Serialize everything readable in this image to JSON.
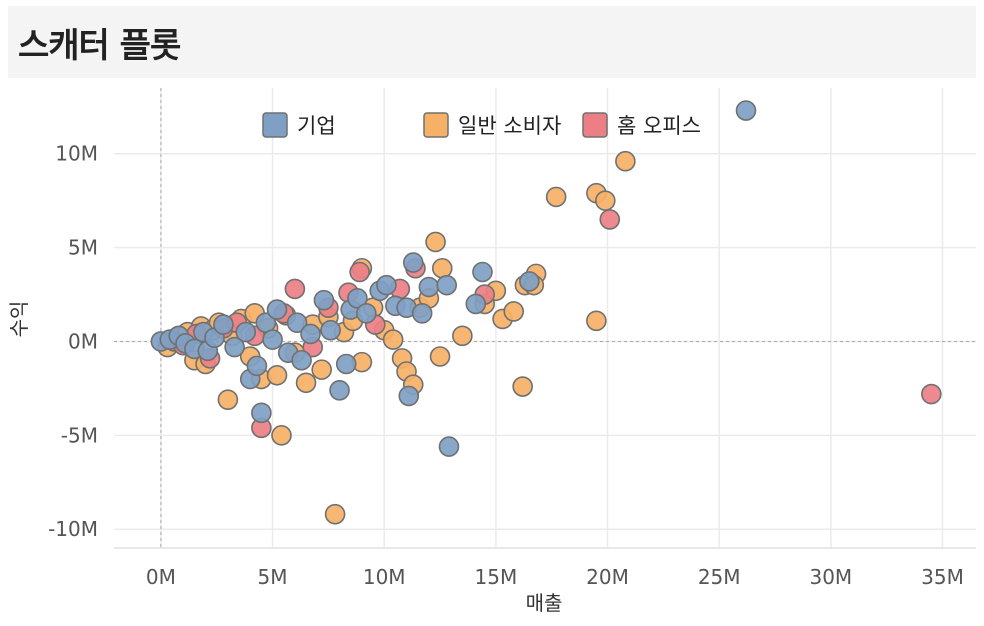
{
  "title": "스캐터 플롯",
  "colors": {
    "기업": "#7f9fc4",
    "일반 소비자": "#f6b167",
    "홈 오피스": "#ec7f86",
    "stroke": "#707070",
    "grid": "#ebebeb"
  },
  "chart_data": {
    "type": "scatter",
    "xlabel": "매출",
    "ylabel": "수익",
    "xlim": [
      -2100000,
      36500000
    ],
    "ylim": [
      -11000000,
      13500000
    ],
    "xticks": [
      0,
      5000000,
      10000000,
      15000000,
      20000000,
      25000000,
      30000000,
      35000000
    ],
    "xtick_labels": [
      "0M",
      "5M",
      "10M",
      "15M",
      "20M",
      "25M",
      "30M",
      "35M"
    ],
    "yticks": [
      -10000000,
      -5000000,
      0,
      5000000,
      10000000
    ],
    "ytick_labels": [
      "-10M",
      "-5M",
      "0M",
      "5M",
      "10M"
    ],
    "legend_position": "top",
    "series": [
      {
        "name": "일반 소비자",
        "points": [
          [
            300000,
            -300000
          ],
          [
            700000,
            200000
          ],
          [
            1200000,
            500000
          ],
          [
            1500000,
            -1000000
          ],
          [
            1800000,
            800000
          ],
          [
            2000000,
            -1200000
          ],
          [
            2300000,
            600000
          ],
          [
            2600000,
            1000000
          ],
          [
            3000000,
            -3100000
          ],
          [
            3200000,
            300000
          ],
          [
            3600000,
            1200000
          ],
          [
            4000000,
            -800000
          ],
          [
            4200000,
            1500000
          ],
          [
            4500000,
            -2000000
          ],
          [
            4800000,
            700000
          ],
          [
            5200000,
            -1800000
          ],
          [
            5400000,
            -5000000
          ],
          [
            5600000,
            1400000
          ],
          [
            6000000,
            -600000
          ],
          [
            6500000,
            -2200000
          ],
          [
            6800000,
            900000
          ],
          [
            7200000,
            -1500000
          ],
          [
            7500000,
            1300000
          ],
          [
            7800000,
            -9200000
          ],
          [
            8200000,
            500000
          ],
          [
            8600000,
            1100000
          ],
          [
            9000000,
            3900000
          ],
          [
            9000000,
            -1100000
          ],
          [
            9500000,
            1800000
          ],
          [
            10000000,
            600000
          ],
          [
            10400000,
            100000
          ],
          [
            10800000,
            -900000
          ],
          [
            11000000,
            -1600000
          ],
          [
            11300000,
            -2300000
          ],
          [
            11600000,
            1800000
          ],
          [
            12000000,
            2300000
          ],
          [
            12300000,
            5300000
          ],
          [
            12600000,
            3900000
          ],
          [
            12500000,
            -800000
          ],
          [
            13500000,
            300000
          ],
          [
            14500000,
            2000000
          ],
          [
            15000000,
            2700000
          ],
          [
            15300000,
            1200000
          ],
          [
            15800000,
            1600000
          ],
          [
            16200000,
            -2400000
          ],
          [
            16300000,
            3000000
          ],
          [
            16800000,
            3600000
          ],
          [
            16700000,
            3000000
          ],
          [
            17700000,
            7700000
          ],
          [
            19500000,
            7900000
          ],
          [
            19500000,
            1100000
          ],
          [
            19900000,
            7500000
          ],
          [
            20800000,
            9600000
          ]
        ]
      },
      {
        "name": "홈 오피스",
        "points": [
          [
            600000,
            0
          ],
          [
            1000000,
            -200000
          ],
          [
            1600000,
            400000
          ],
          [
            2200000,
            -900000
          ],
          [
            2800000,
            700000
          ],
          [
            3400000,
            1000000
          ],
          [
            4200000,
            300000
          ],
          [
            4500000,
            -4600000
          ],
          [
            5500000,
            1500000
          ],
          [
            6000000,
            2800000
          ],
          [
            6800000,
            -300000
          ],
          [
            7500000,
            1800000
          ],
          [
            8400000,
            2600000
          ],
          [
            8900000,
            3700000
          ],
          [
            9600000,
            900000
          ],
          [
            10700000,
            2800000
          ],
          [
            11400000,
            3900000
          ],
          [
            14500000,
            2500000
          ],
          [
            20100000,
            6500000
          ],
          [
            34500000,
            -2800000
          ]
        ]
      },
      {
        "name": "기업",
        "points": [
          [
            0,
            0
          ],
          [
            400000,
            100000
          ],
          [
            800000,
            300000
          ],
          [
            1100000,
            -100000
          ],
          [
            1500000,
            -400000
          ],
          [
            1900000,
            500000
          ],
          [
            2100000,
            -500000
          ],
          [
            2400000,
            200000
          ],
          [
            2800000,
            900000
          ],
          [
            3300000,
            -300000
          ],
          [
            3800000,
            500000
          ],
          [
            4000000,
            -2000000
          ],
          [
            4300000,
            -1300000
          ],
          [
            4500000,
            -3800000
          ],
          [
            4700000,
            1000000
          ],
          [
            5000000,
            100000
          ],
          [
            5200000,
            1700000
          ],
          [
            5700000,
            -600000
          ],
          [
            6100000,
            1000000
          ],
          [
            6300000,
            -1000000
          ],
          [
            6700000,
            400000
          ],
          [
            7300000,
            2200000
          ],
          [
            7600000,
            600000
          ],
          [
            8000000,
            -2600000
          ],
          [
            8300000,
            -1200000
          ],
          [
            8500000,
            1700000
          ],
          [
            8800000,
            2300000
          ],
          [
            9200000,
            1500000
          ],
          [
            9800000,
            2700000
          ],
          [
            10100000,
            3000000
          ],
          [
            10500000,
            1900000
          ],
          [
            11000000,
            1800000
          ],
          [
            11100000,
            -2900000
          ],
          [
            11300000,
            4200000
          ],
          [
            11700000,
            1500000
          ],
          [
            12000000,
            2900000
          ],
          [
            12800000,
            3000000
          ],
          [
            12900000,
            -5600000
          ],
          [
            14100000,
            2000000
          ],
          [
            14400000,
            3700000
          ],
          [
            16500000,
            3200000
          ],
          [
            26200000,
            12300000
          ]
        ]
      }
    ]
  }
}
